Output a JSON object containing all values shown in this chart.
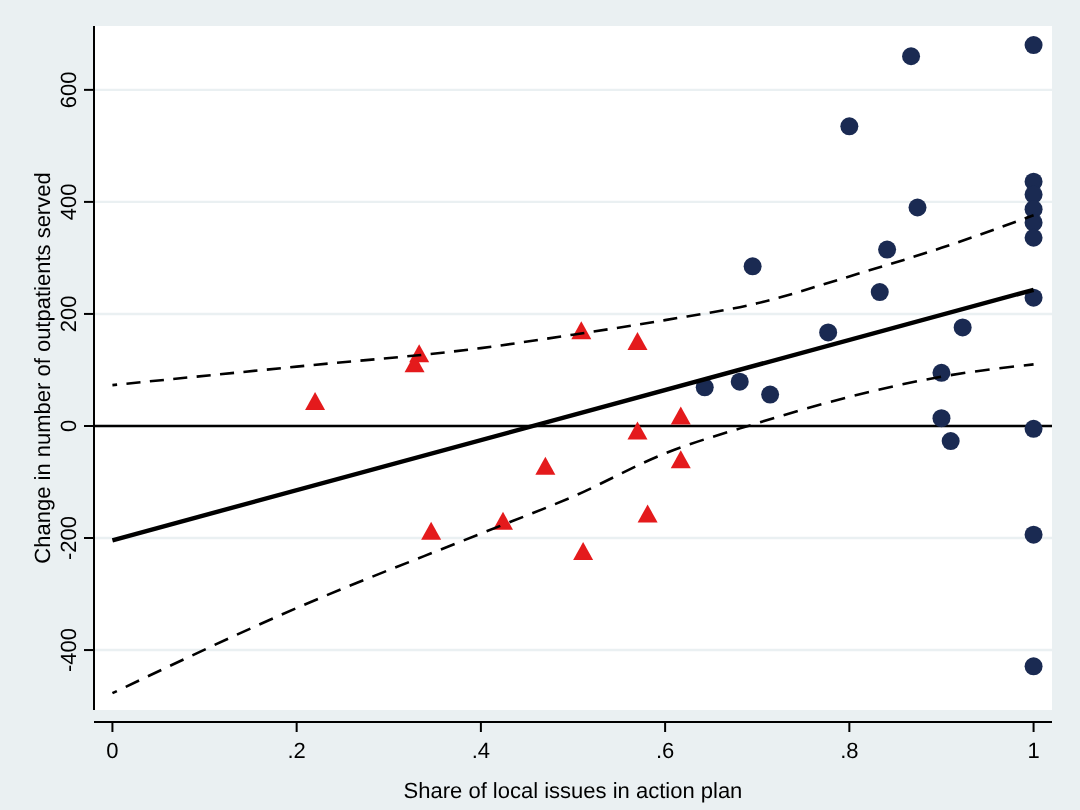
{
  "chart_data": {
    "type": "scatter",
    "xlabel": "Share of local issues in action plan",
    "ylabel": "Change in number of outpatients served",
    "xlim": [
      -0.02,
      1.02
    ],
    "ylim": [
      -507,
      714
    ],
    "xticks": [
      0,
      {
        "value": 0.2,
        "label": ".2"
      },
      {
        "value": 0.4,
        "label": ".4"
      },
      {
        "value": 0.6,
        "label": ".6"
      },
      {
        "value": 0.8,
        "label": ".8"
      },
      1
    ],
    "yticks": [
      -400,
      -200,
      0,
      200,
      400,
      600
    ],
    "grid": "y",
    "ref_lines": [
      {
        "axis": "y",
        "value": 0,
        "color": "#000000",
        "line_style": "solid"
      }
    ],
    "series": [
      {
        "marker": "triangle",
        "color": "#e41a1c",
        "x": [
          0.22,
          0.333,
          0.328,
          0.346,
          0.424,
          0.47,
          0.509,
          0.511,
          0.57,
          0.57,
          0.617,
          0.617,
          0.581
        ],
        "values": [
          43,
          128,
          110,
          -189,
          -171,
          -73,
          169,
          -225,
          150,
          -10,
          17,
          -61,
          -158
        ]
      },
      {
        "marker": "circle",
        "color": "#1a2a52",
        "x": [
          0.867,
          1,
          0.8,
          0.874,
          0.695,
          0.841,
          0.833,
          0.777,
          0.923,
          1,
          1,
          1,
          1,
          1,
          1,
          0.643,
          0.681,
          0.714,
          0.9,
          0.9,
          0.91,
          1,
          1,
          1
        ],
        "values": [
          660,
          680,
          535,
          390,
          285,
          315,
          239,
          167,
          176,
          229,
          436,
          413,
          387,
          363,
          336,
          69,
          79,
          56,
          95,
          14,
          -27,
          -5,
          -194,
          -429
        ]
      },
      {
        "type": "line",
        "marker": "none",
        "line_style": "solid",
        "color": "#000000",
        "x": [
          0,
          1
        ],
        "values": [
          -204,
          243
        ]
      },
      {
        "type": "line",
        "marker": "none",
        "line_style": "dashed",
        "color": "#000000",
        "x": [
          0,
          0.2,
          0.4,
          0.5,
          0.6,
          0.7,
          0.8,
          0.9,
          1
        ],
        "values": [
          73,
          106,
          139,
          163,
          189,
          219,
          267,
          318,
          376
        ]
      },
      {
        "type": "line",
        "marker": "none",
        "line_style": "dashed",
        "color": "#000000",
        "x": [
          0,
          0.2,
          0.4,
          0.5,
          0.6,
          0.7,
          0.8,
          0.9,
          1
        ],
        "values": [
          -477,
          -325,
          -192,
          -126,
          -49,
          5,
          52,
          88,
          110
        ]
      }
    ]
  }
}
